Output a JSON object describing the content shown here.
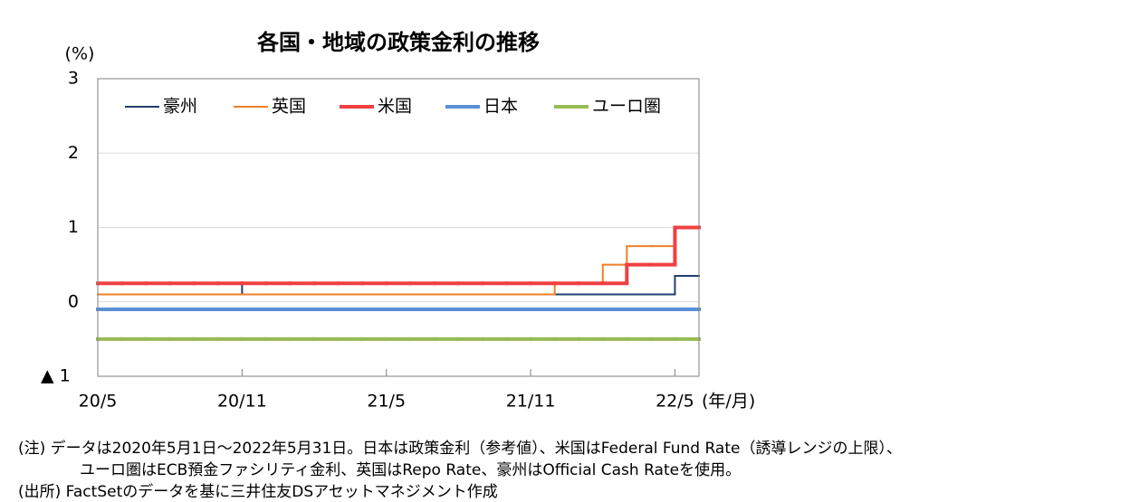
{
  "chart_data": {
    "type": "line",
    "step": true,
    "title": "各国・地域の政策金利の推移",
    "y_label": "(%)",
    "x_label": "(年/月)",
    "x": [
      "2020-05",
      "2020-06",
      "2020-07",
      "2020-08",
      "2020-09",
      "2020-10",
      "2020-11",
      "2020-12",
      "2021-01",
      "2021-02",
      "2021-03",
      "2021-04",
      "2021-05",
      "2021-06",
      "2021-07",
      "2021-08",
      "2021-09",
      "2021-10",
      "2021-11",
      "2021-12",
      "2022-01",
      "2022-02",
      "2022-03",
      "2022-04",
      "2022-05"
    ],
    "xlim": [
      "2020-05",
      "2022-06"
    ],
    "xticks": [
      {
        "value": "2020-05",
        "label": "20/5"
      },
      {
        "value": "2020-11",
        "label": "20/11"
      },
      {
        "value": "2021-05",
        "label": "21/5"
      },
      {
        "value": "2021-11",
        "label": "21/11"
      },
      {
        "value": "2022-05",
        "label": "22/5"
      }
    ],
    "ylim": [
      -1,
      3
    ],
    "yticks": [
      {
        "value": -1,
        "label": "▲ 1"
      },
      0,
      1,
      2,
      3
    ],
    "grid": true,
    "legend": "top",
    "series": [
      {
        "name": "豪州",
        "color": "#1f3f6e",
        "width": 2,
        "values": [
          0.25,
          0.25,
          0.25,
          0.25,
          0.25,
          0.25,
          0.1,
          0.1,
          0.1,
          0.1,
          0.1,
          0.1,
          0.1,
          0.1,
          0.1,
          0.1,
          0.1,
          0.1,
          0.1,
          0.1,
          0.1,
          0.1,
          0.1,
          0.1,
          0.35
        ]
      },
      {
        "name": "英国",
        "color": "#f07f26",
        "width": 2,
        "values": [
          0.1,
          0.1,
          0.1,
          0.1,
          0.1,
          0.1,
          0.1,
          0.1,
          0.1,
          0.1,
          0.1,
          0.1,
          0.1,
          0.1,
          0.1,
          0.1,
          0.1,
          0.1,
          0.1,
          0.25,
          0.25,
          0.5,
          0.75,
          0.75,
          1
        ]
      },
      {
        "name": "米国",
        "color": "#f04040",
        "width": 4,
        "values": [
          0.25,
          0.25,
          0.25,
          0.25,
          0.25,
          0.25,
          0.25,
          0.25,
          0.25,
          0.25,
          0.25,
          0.25,
          0.25,
          0.25,
          0.25,
          0.25,
          0.25,
          0.25,
          0.25,
          0.25,
          0.25,
          0.25,
          0.5,
          0.5,
          1
        ]
      },
      {
        "name": "日本",
        "color": "#5b8fd6",
        "width": 4,
        "values": [
          -0.1,
          -0.1,
          -0.1,
          -0.1,
          -0.1,
          -0.1,
          -0.1,
          -0.1,
          -0.1,
          -0.1,
          -0.1,
          -0.1,
          -0.1,
          -0.1,
          -0.1,
          -0.1,
          -0.1,
          -0.1,
          -0.1,
          -0.1,
          -0.1,
          -0.1,
          -0.1,
          -0.1,
          -0.1
        ]
      },
      {
        "name": "ユーロ圏",
        "color": "#99bb55",
        "width": 4,
        "values": [
          -0.5,
          -0.5,
          -0.5,
          -0.5,
          -0.5,
          -0.5,
          -0.5,
          -0.5,
          -0.5,
          -0.5,
          -0.5,
          -0.5,
          -0.5,
          -0.5,
          -0.5,
          -0.5,
          -0.5,
          -0.5,
          -0.5,
          -0.5,
          -0.5,
          -0.5,
          -0.5,
          -0.5,
          -0.5
        ]
      }
    ]
  },
  "notes": [
    "(注) データは2020年5月1日～2022年5月31日。日本は政策金利（参考値）、米国はFederal Fund Rate（誘導レンジの上限）、",
    "ユーロ圏はECB預金ファシリティ金利、英国はRepo Rate、豪州はOfficial Cash Rateを使用。",
    "(出所) FactSetのデータを基に三井住友DSアセットマネジメント作成"
  ]
}
